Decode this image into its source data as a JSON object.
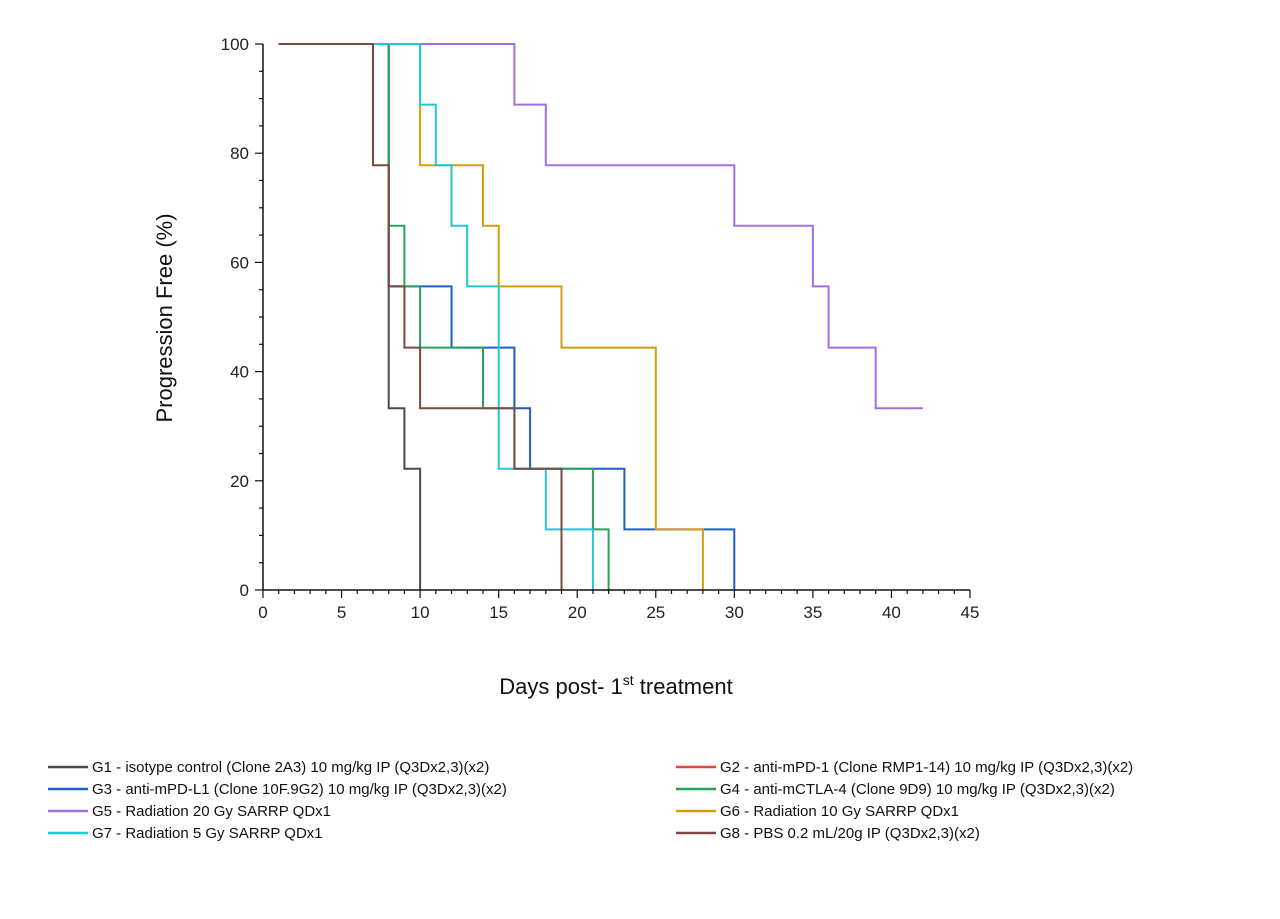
{
  "chart_data": {
    "type": "line",
    "title": "",
    "xlabel": "Days post- 1",
    "xlabel_sup": "st",
    "xlabel_tail": " treatment",
    "ylabel": "Progression Free (%)",
    "xlim": [
      0,
      45
    ],
    "ylim": [
      0,
      100
    ],
    "x_ticks": [
      "0",
      "5",
      "10",
      "15",
      "20",
      "25",
      "30",
      "35",
      "40",
      "45"
    ],
    "y_ticks": [
      "0",
      "20",
      "40",
      "60",
      "80",
      "100"
    ],
    "grid": false,
    "legend_position": "bottom",
    "series": [
      {
        "name": "G1 - isotype control (Clone 2A3) 10 mg/kg IP (Q3Dx2,3)(x2)",
        "color": "#4a4a4a",
        "points": [
          [
            1,
            100
          ],
          [
            8,
            100
          ],
          [
            8,
            33.3
          ],
          [
            9,
            33.3
          ],
          [
            9,
            22.2
          ],
          [
            10,
            22.2
          ],
          [
            10,
            0
          ]
        ]
      },
      {
        "name": "G2 - anti-mPD-1 (Clone RMP1-14) 10 mg/kg IP (Q3Dx2,3)(x2)",
        "color": "#e8463c",
        "points": [
          [
            1,
            100
          ],
          [
            8,
            100
          ],
          [
            8,
            55.6
          ],
          [
            9,
            55.6
          ]
        ]
      },
      {
        "name": "G3 - anti-mPD-L1 (Clone 10F.9G2) 10 mg/kg IP (Q3Dx2,3)(x2)",
        "color": "#1f5fc4",
        "points": [
          [
            1,
            100
          ],
          [
            8,
            100
          ],
          [
            8,
            55.6
          ],
          [
            12,
            55.6
          ],
          [
            12,
            44.4
          ],
          [
            16,
            44.4
          ],
          [
            16,
            33.3
          ],
          [
            17,
            33.3
          ],
          [
            17,
            22.2
          ],
          [
            23,
            22.2
          ],
          [
            23,
            11.1
          ],
          [
            30,
            11.1
          ],
          [
            30,
            0
          ]
        ]
      },
      {
        "name": "G4 - anti-mCTLA-4 (Clone 9D9) 10 mg/kg IP (Q3Dx2,3)(x2)",
        "color": "#2aa35a",
        "points": [
          [
            1,
            100
          ],
          [
            8,
            100
          ],
          [
            8,
            66.7
          ],
          [
            9,
            66.7
          ],
          [
            9,
            55.6
          ],
          [
            10,
            55.6
          ],
          [
            10,
            44.4
          ],
          [
            14,
            44.4
          ],
          [
            14,
            33.3
          ],
          [
            16,
            33.3
          ],
          [
            16,
            22.2
          ],
          [
            21,
            22.2
          ],
          [
            21,
            11.1
          ],
          [
            22,
            11.1
          ],
          [
            22,
            0
          ]
        ]
      },
      {
        "name": "G5 - Radiation 20 Gy SARRP QDx1",
        "color": "#a070e0",
        "points": [
          [
            1,
            100
          ],
          [
            16,
            100
          ],
          [
            16,
            88.9
          ],
          [
            18,
            88.9
          ],
          [
            18,
            77.8
          ],
          [
            30,
            77.8
          ],
          [
            30,
            66.7
          ],
          [
            35,
            66.7
          ],
          [
            35,
            55.6
          ],
          [
            36,
            55.6
          ],
          [
            36,
            44.4
          ],
          [
            39,
            44.4
          ],
          [
            39,
            33.3
          ],
          [
            42,
            33.3
          ]
        ]
      },
      {
        "name": "G6 - Radiation 10 Gy SARRP QDx1",
        "color": "#d19e0f",
        "points": [
          [
            1,
            100
          ],
          [
            10,
            100
          ],
          [
            10,
            88.9
          ],
          [
            10,
            77.8
          ],
          [
            14,
            77.8
          ],
          [
            14,
            66.7
          ],
          [
            15,
            66.7
          ],
          [
            15,
            55.6
          ],
          [
            19,
            55.6
          ],
          [
            19,
            44.4
          ],
          [
            25,
            44.4
          ],
          [
            25,
            11.1
          ],
          [
            28,
            11.1
          ],
          [
            28,
            0
          ]
        ]
      },
      {
        "name": "G7 - Radiation 5 Gy SARRP QDx1",
        "color": "#21c7d6",
        "points": [
          [
            1,
            100
          ],
          [
            10,
            100
          ],
          [
            10,
            88.9
          ],
          [
            11,
            88.9
          ],
          [
            11,
            77.8
          ],
          [
            12,
            77.8
          ],
          [
            12,
            66.7
          ],
          [
            13,
            66.7
          ],
          [
            13,
            55.6
          ],
          [
            15,
            55.6
          ],
          [
            15,
            22.2
          ],
          [
            18,
            22.2
          ],
          [
            18,
            11.1
          ],
          [
            21,
            11.1
          ],
          [
            21,
            0
          ]
        ]
      },
      {
        "name": "G8 - PBS 0.2 mL/20g IP (Q3Dx2,3)(x2)",
        "color": "#7a4a43",
        "points": [
          [
            1,
            100
          ],
          [
            7,
            100
          ],
          [
            7,
            77.8
          ],
          [
            8,
            77.8
          ],
          [
            8,
            55.6
          ],
          [
            9,
            55.6
          ],
          [
            9,
            44.4
          ],
          [
            10,
            44.4
          ],
          [
            10,
            33.3
          ],
          [
            16,
            33.3
          ],
          [
            16,
            22.2
          ],
          [
            19,
            22.2
          ],
          [
            19,
            0
          ]
        ]
      }
    ]
  }
}
